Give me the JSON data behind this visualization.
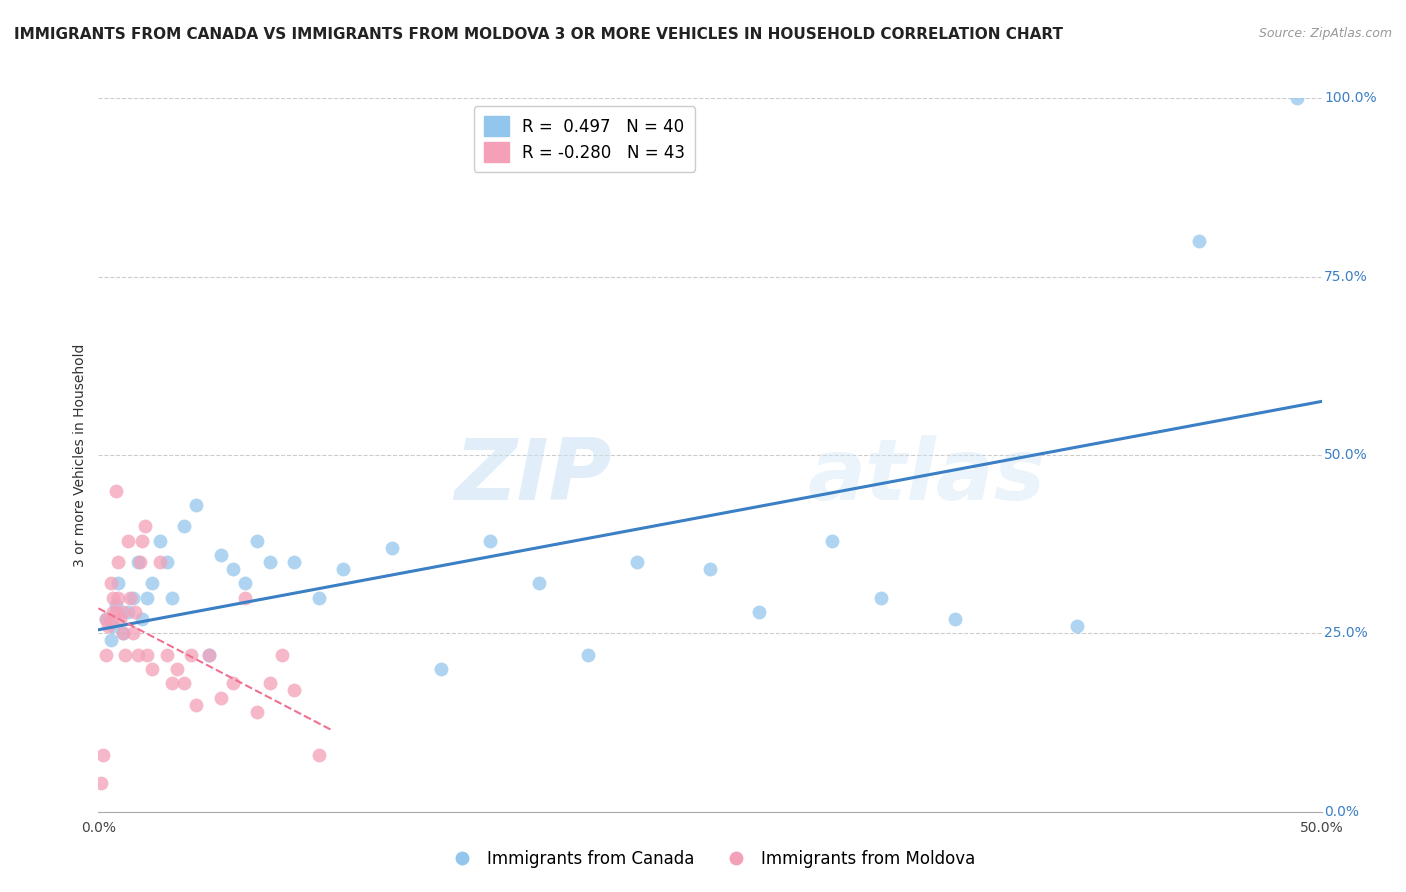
{
  "title": "IMMIGRANTS FROM CANADA VS IMMIGRANTS FROM MOLDOVA 3 OR MORE VEHICLES IN HOUSEHOLD CORRELATION CHART",
  "source": "Source: ZipAtlas.com",
  "ylabel": "3 or more Vehicles in Household",
  "xlim": [
    0.0,
    0.5
  ],
  "ylim": [
    0.0,
    1.0
  ],
  "ytick_labels": [
    "0.0%",
    "25.0%",
    "50.0%",
    "75.0%",
    "100.0%"
  ],
  "ytick_values": [
    0.0,
    0.25,
    0.5,
    0.75,
    1.0
  ],
  "xtick_vals": [
    0.0,
    0.1,
    0.2,
    0.3,
    0.4,
    0.5
  ],
  "xtick_labels": [
    "0.0%",
    "",
    "",
    "",
    "",
    "50.0%"
  ],
  "watermark_zip": "ZIP",
  "watermark_atlas": "atlas",
  "legend_canada_R": "0.497",
  "legend_canada_N": "40",
  "legend_moldova_R": "-0.280",
  "legend_moldova_N": "43",
  "canada_color": "#93C6ED",
  "moldova_color": "#F4A0B8",
  "canada_line_color": "#3B7FC4",
  "moldova_line_color": "#F07090",
  "background_color": "#ffffff",
  "grid_color": "#cccccc",
  "canada_scatter_x": [
    0.003,
    0.005,
    0.006,
    0.007,
    0.008,
    0.01,
    0.012,
    0.014,
    0.016,
    0.018,
    0.02,
    0.022,
    0.025,
    0.028,
    0.03,
    0.035,
    0.04,
    0.045,
    0.05,
    0.055,
    0.06,
    0.065,
    0.07,
    0.08,
    0.09,
    0.1,
    0.12,
    0.14,
    0.16,
    0.18,
    0.2,
    0.22,
    0.25,
    0.27,
    0.3,
    0.32,
    0.35,
    0.4,
    0.45,
    0.49
  ],
  "canada_scatter_y": [
    0.27,
    0.24,
    0.26,
    0.29,
    0.32,
    0.25,
    0.28,
    0.3,
    0.35,
    0.27,
    0.3,
    0.32,
    0.38,
    0.35,
    0.3,
    0.4,
    0.43,
    0.22,
    0.36,
    0.34,
    0.32,
    0.38,
    0.35,
    0.35,
    0.3,
    0.34,
    0.37,
    0.2,
    0.38,
    0.32,
    0.22,
    0.35,
    0.34,
    0.28,
    0.38,
    0.3,
    0.27,
    0.26,
    0.8,
    1.0
  ],
  "moldova_scatter_x": [
    0.001,
    0.002,
    0.003,
    0.003,
    0.004,
    0.005,
    0.005,
    0.006,
    0.006,
    0.007,
    0.007,
    0.008,
    0.008,
    0.009,
    0.01,
    0.01,
    0.011,
    0.012,
    0.013,
    0.014,
    0.015,
    0.016,
    0.017,
    0.018,
    0.019,
    0.02,
    0.022,
    0.025,
    0.028,
    0.03,
    0.032,
    0.035,
    0.038,
    0.04,
    0.045,
    0.05,
    0.055,
    0.06,
    0.065,
    0.07,
    0.075,
    0.08,
    0.09
  ],
  "moldova_scatter_y": [
    0.04,
    0.08,
    0.27,
    0.22,
    0.26,
    0.27,
    0.32,
    0.28,
    0.3,
    0.28,
    0.45,
    0.3,
    0.35,
    0.27,
    0.25,
    0.28,
    0.22,
    0.38,
    0.3,
    0.25,
    0.28,
    0.22,
    0.35,
    0.38,
    0.4,
    0.22,
    0.2,
    0.35,
    0.22,
    0.18,
    0.2,
    0.18,
    0.22,
    0.15,
    0.22,
    0.16,
    0.18,
    0.3,
    0.14,
    0.18,
    0.22,
    0.17,
    0.08
  ],
  "canada_trend_x": [
    0.0,
    0.5
  ],
  "canada_trend_y": [
    0.255,
    0.575
  ],
  "moldova_trend_x": [
    0.0,
    0.095
  ],
  "moldova_trend_y": [
    0.285,
    0.115
  ],
  "title_fontsize": 11,
  "axis_label_fontsize": 10,
  "tick_fontsize": 10,
  "legend_fontsize": 12,
  "source_fontsize": 9
}
